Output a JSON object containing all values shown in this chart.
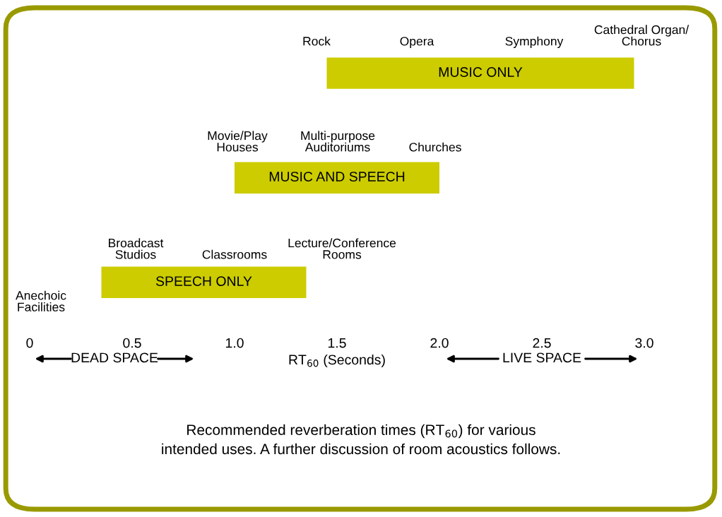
{
  "chart_data": {
    "type": "bar",
    "orientation": "horizontal",
    "categories": [
      "MUSIC ONLY",
      "MUSIC AND SPEECH",
      "SPEECH ONLY"
    ],
    "base": [
      1.45,
      1.0,
      0.35
    ],
    "values": [
      1.5,
      1.0,
      1.0
    ],
    "color": "#cccc00",
    "xlim": [
      0,
      3
    ],
    "xticks": [
      0,
      0.5,
      {
        "value": 1.0,
        "label": "1.0"
      },
      1.5,
      {
        "value": 2.0,
        "label": "2.0"
      },
      2.5,
      {
        "value": 3.0,
        "label": "3.0"
      }
    ],
    "xlabel": "RT$_{60}$ (Seconds)",
    "tick_labels": "x",
    "grid": false,
    "legend": false,
    "annotations": [
      "Rock",
      "Opera",
      "Symphony",
      "Cathedral Organ/\nChorus",
      "Movie/Play\nHouses",
      "Multi-purpose\nAuditoriums",
      "Churches",
      "Broadcast\nStudios",
      "Classrooms",
      "Lecture/Conference\nRooms",
      "Anechoic\nFacilities",
      "DEAD SPACE",
      "LIVE SPACE",
      "Recommended reverberation times (RT$_{60}$) for various\nintended uses. A further discussion of room acoustics follows."
    ]
  }
}
